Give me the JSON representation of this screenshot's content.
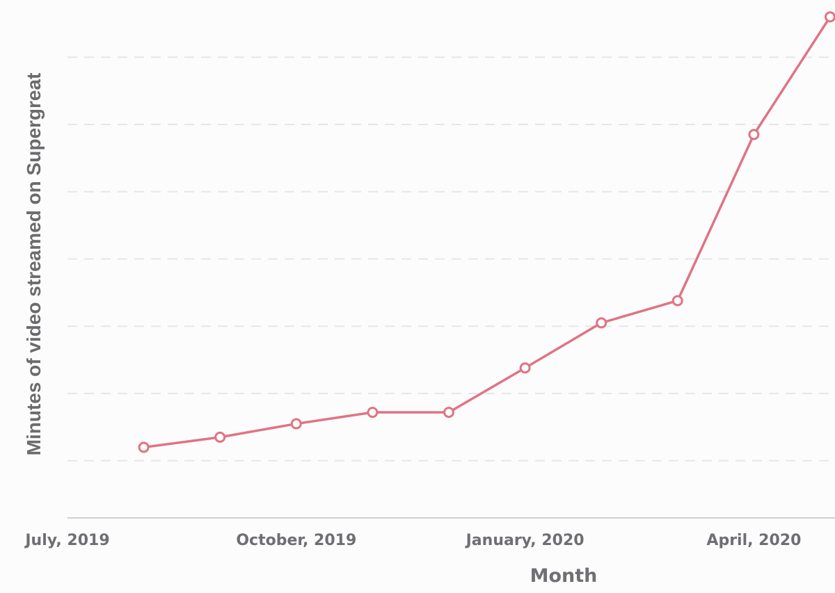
{
  "chart_data": {
    "type": "line",
    "title": "",
    "xlabel": "Month",
    "ylabel": "Minutes of video streamed on Supergreat",
    "x": [
      "2019-08",
      "2019-09",
      "2019-10",
      "2019-11",
      "2019-12",
      "2020-01",
      "2020-02",
      "2020-03",
      "2020-04",
      "2020-05"
    ],
    "x_ticks": [
      {
        "value": "2019-07",
        "label": "July, 2019"
      },
      {
        "value": "2019-10",
        "label": "October, 2019"
      },
      {
        "value": "2020-01",
        "label": "January, 2020"
      },
      {
        "value": "2020-04",
        "label": "April, 2020"
      }
    ],
    "x_range": [
      "2019-07",
      "2020-05"
    ],
    "series": [
      {
        "name": "",
        "color": "#e07383",
        "values": [
          0.2,
          0.35,
          0.55,
          0.72,
          0.72,
          1.38,
          2.05,
          2.38,
          4.85,
          6.6
        ]
      }
    ],
    "ylim": [
      -0.85,
      6.85
    ],
    "y_gridlines": [
      0,
      1,
      2,
      3,
      4,
      5,
      6
    ],
    "y_tick_labels_visible": false,
    "grid": true,
    "legend": "none"
  }
}
